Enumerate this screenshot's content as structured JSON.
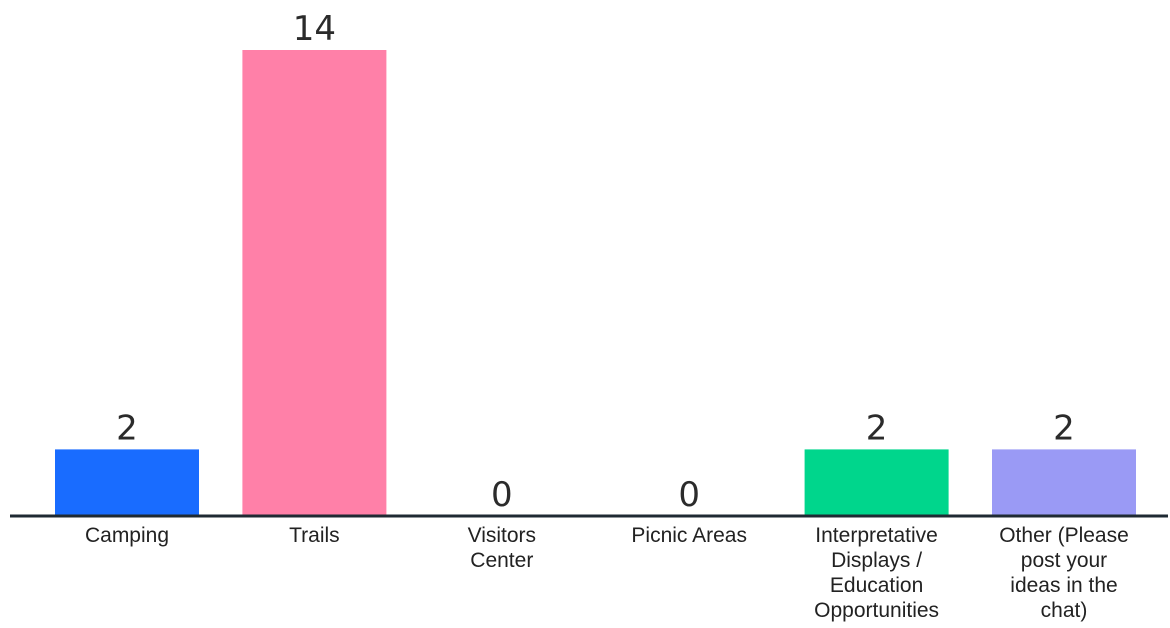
{
  "chart_data": {
    "type": "bar",
    "categories": [
      [
        "Camping"
      ],
      [
        "Trails"
      ],
      [
        "Visitors",
        "Center"
      ],
      [
        "Picnic Areas"
      ],
      [
        "Interpretative",
        "Displays /",
        "Education",
        "Opportunities"
      ],
      [
        "Other (Please",
        "post your",
        "ideas in the",
        "chat)"
      ]
    ],
    "values": [
      2,
      14,
      0,
      0,
      2,
      2
    ],
    "colors": [
      "#196cff",
      "#ff80a8",
      "#cccccc",
      "#cccccc",
      "#00d68c",
      "#9a9af5"
    ],
    "axis_color": "#1f2a33",
    "title": "",
    "xlabel": "",
    "ylabel": "",
    "ylim": [
      0,
      14
    ],
    "grid": false,
    "legend": "none"
  }
}
